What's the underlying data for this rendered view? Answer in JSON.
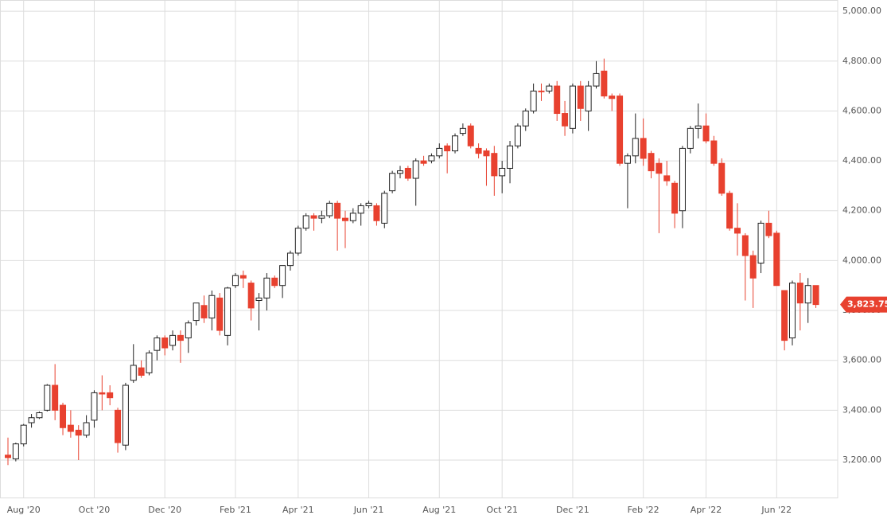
{
  "chart_data": {
    "type": "candlestick",
    "categories": [
      null,
      null,
      "Aug '20",
      null,
      null,
      null,
      null,
      null,
      null,
      null,
      null,
      "Oct '20",
      null,
      null,
      null,
      null,
      null,
      null,
      null,
      null,
      "Dec '20",
      null,
      null,
      null,
      null,
      null,
      null,
      null,
      null,
      "Feb '21",
      null,
      null,
      null,
      null,
      null,
      null,
      null,
      "Apr '21",
      null,
      null,
      null,
      null,
      null,
      null,
      null,
      null,
      "Jun '21",
      null,
      null,
      null,
      null,
      null,
      null,
      null,
      null,
      "Aug '21",
      null,
      null,
      null,
      null,
      null,
      null,
      null,
      "Oct '21",
      null,
      null,
      null,
      null,
      null,
      null,
      null,
      null,
      "Dec '21",
      null,
      null,
      null,
      null,
      null,
      null,
      null,
      null,
      "Feb '22",
      null,
      null,
      null,
      null,
      null,
      null,
      null,
      "Apr '22",
      null,
      null,
      null,
      null,
      null,
      null,
      null,
      null,
      "Jun '22",
      null,
      null,
      null,
      null,
      null
    ],
    "open": [
      3220,
      3205,
      3265,
      3350,
      3370,
      3400,
      3500,
      3420,
      3340,
      3320,
      3300,
      3360,
      3470,
      3470,
      3400,
      3260,
      3520,
      3570,
      3550,
      3640,
      3690,
      3660,
      3700,
      3690,
      3760,
      3820,
      3770,
      3850,
      3700,
      3900,
      3940,
      3910,
      3840,
      3850,
      3930,
      3900,
      3980,
      4030,
      4130,
      4180,
      4170,
      4180,
      4230,
      4170,
      4160,
      4190,
      4220,
      4220,
      4150,
      4280,
      4350,
      4370,
      4330,
      4400,
      4400,
      4420,
      4460,
      4440,
      4510,
      4540,
      4450,
      4440,
      4430,
      4340,
      4370,
      4460,
      4540,
      4600,
      4680,
      4680,
      4700,
      4590,
      4530,
      4700,
      4600,
      4700,
      4760,
      4660,
      4660,
      4390,
      4420,
      4490,
      4430,
      4390,
      4340,
      4310,
      4200,
      4450,
      4530,
      4540,
      4480,
      4390,
      4270,
      4130,
      4100,
      4020,
      3990,
      4150,
      4110,
      3880,
      3690,
      3910,
      3830,
      3900
    ],
    "high": [
      3290,
      3270,
      3345,
      3385,
      3395,
      3505,
      3585,
      3430,
      3400,
      3340,
      3380,
      3480,
      3540,
      3500,
      3410,
      3510,
      3665,
      3600,
      3640,
      3700,
      3700,
      3720,
      3720,
      3760,
      3830,
      3860,
      3880,
      3870,
      3895,
      3950,
      3960,
      3920,
      3870,
      3950,
      3940,
      3980,
      4040,
      4140,
      4190,
      4190,
      4200,
      4240,
      4240,
      4200,
      4210,
      4230,
      4240,
      4230,
      4280,
      4360,
      4380,
      4380,
      4410,
      4420,
      4430,
      4470,
      4470,
      4510,
      4550,
      4550,
      4470,
      4450,
      4460,
      4400,
      4480,
      4550,
      4610,
      4710,
      4710,
      4710,
      4720,
      4640,
      4710,
      4720,
      4720,
      4800,
      4810,
      4670,
      4670,
      4430,
      4590,
      4570,
      4440,
      4410,
      4400,
      4320,
      4460,
      4540,
      4630,
      4590,
      4500,
      4410,
      4280,
      4230,
      4110,
      4040,
      4160,
      4200,
      4120,
      3880,
      3920,
      3950,
      3930,
      3900
    ],
    "low": [
      3180,
      3195,
      3255,
      3330,
      3365,
      3395,
      3360,
      3300,
      3290,
      3200,
      3290,
      3330,
      3400,
      3420,
      3230,
      3240,
      3510,
      3530,
      3540,
      3600,
      3620,
      3640,
      3590,
      3630,
      3740,
      3750,
      3720,
      3700,
      3660,
      3890,
      3890,
      3760,
      3720,
      3800,
      3890,
      3850,
      3960,
      4020,
      4120,
      4120,
      4150,
      4170,
      4040,
      4050,
      4150,
      4140,
      4210,
      4140,
      4130,
      4270,
      4330,
      4320,
      4220,
      4380,
      4390,
      4410,
      4350,
      4430,
      4500,
      4450,
      4410,
      4300,
      4260,
      4270,
      4310,
      4450,
      4520,
      4590,
      4640,
      4670,
      4560,
      4500,
      4510,
      4560,
      4520,
      4690,
      4650,
      4600,
      4380,
      4210,
      4390,
      4380,
      4330,
      4110,
      4300,
      4130,
      4130,
      4430,
      4490,
      4470,
      4380,
      4260,
      4120,
      4020,
      3840,
      3810,
      3950,
      4090,
      3900,
      3640,
      3660,
      3720,
      3750,
      3810
    ],
    "close": [
      3210,
      3265,
      3340,
      3370,
      3390,
      3500,
      3400,
      3330,
      3315,
      3300,
      3350,
      3470,
      3465,
      3450,
      3270,
      3500,
      3580,
      3540,
      3630,
      3690,
      3650,
      3700,
      3680,
      3750,
      3830,
      3770,
      3860,
      3720,
      3890,
      3940,
      3930,
      3810,
      3850,
      3930,
      3900,
      3980,
      4030,
      4130,
      4180,
      4170,
      4180,
      4230,
      4170,
      4160,
      4190,
      4220,
      4230,
      4160,
      4270,
      4350,
      4360,
      4330,
      4400,
      4390,
      4420,
      4450,
      4440,
      4500,
      4530,
      4460,
      4430,
      4420,
      4340,
      4370,
      4460,
      4540,
      4600,
      4680,
      4679,
      4700,
      4590,
      4540,
      4700,
      4610,
      4700,
      4750,
      4660,
      4650,
      4390,
      4420,
      4490,
      4410,
      4360,
      4350,
      4320,
      4190,
      4450,
      4530,
      4540,
      4480,
      4390,
      4270,
      4130,
      4110,
      4020,
      3930,
      4150,
      4100,
      3900,
      3680,
      3910,
      3830,
      3900,
      3823.75
    ],
    "up_color": "#ffffff",
    "down_color": "#e8412f",
    "ylim": [
      3050,
      5045
    ],
    "yticks": [
      {
        "value": 3200,
        "label": "3,200.00"
      },
      {
        "value": 3400,
        "label": "3,400.00"
      },
      {
        "value": 3600,
        "label": "3,600.00"
      },
      {
        "value": 3800,
        "label": "3,800.00"
      },
      {
        "value": 4000,
        "label": "4,000.00"
      },
      {
        "value": 4200,
        "label": "4,200.00"
      },
      {
        "value": 4400,
        "label": "4,400.00"
      },
      {
        "value": 4600,
        "label": "4,600.00"
      },
      {
        "value": 4800,
        "label": "4,800.00"
      },
      {
        "value": 5000,
        "label": "5,000.00"
      }
    ],
    "grid": true,
    "last_price": 3823.75,
    "last_price_label": "3,823.75"
  }
}
